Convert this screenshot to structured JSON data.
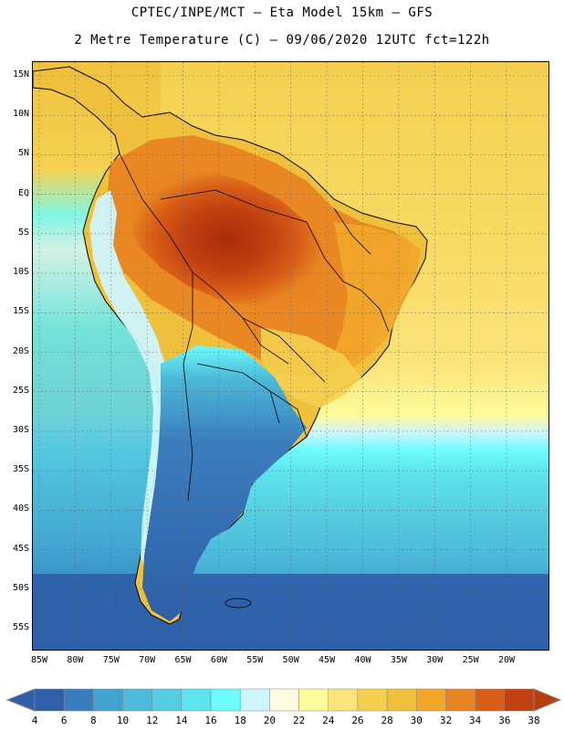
{
  "header": {
    "line1": "CPTEC/INPE/MCT –  Eta Model 15km – GFS",
    "line2": "2 Metre Temperature (C) – 09/06/2020 12UTC fct=122h"
  },
  "map": {
    "variable": "2 Metre Temperature",
    "unit": "C",
    "lat_labels": [
      {
        "text": "15N",
        "lat": 15
      },
      {
        "text": "10N",
        "lat": 10
      },
      {
        "text": "5N",
        "lat": 5
      },
      {
        "text": "EQ",
        "lat": 0
      },
      {
        "text": "5S",
        "lat": -5
      },
      {
        "text": "10S",
        "lat": -10
      },
      {
        "text": "15S",
        "lat": -15
      },
      {
        "text": "20S",
        "lat": -20
      },
      {
        "text": "25S",
        "lat": -25
      },
      {
        "text": "30S",
        "lat": -30
      },
      {
        "text": "35S",
        "lat": -35
      },
      {
        "text": "40S",
        "lat": -40
      },
      {
        "text": "45S",
        "lat": -45
      },
      {
        "text": "50S",
        "lat": -50
      },
      {
        "text": "55S",
        "lat": -55
      }
    ],
    "lon_labels": [
      {
        "text": "85W",
        "lon": -85
      },
      {
        "text": "80W",
        "lon": -80
      },
      {
        "text": "75W",
        "lon": -75
      },
      {
        "text": "70W",
        "lon": -70
      },
      {
        "text": "65W",
        "lon": -65
      },
      {
        "text": "60W",
        "lon": -60
      },
      {
        "text": "55W",
        "lon": -55
      },
      {
        "text": "50W",
        "lon": -50
      },
      {
        "text": "45W",
        "lon": -45
      },
      {
        "text": "40W",
        "lon": -40
      },
      {
        "text": "35W",
        "lon": -35
      },
      {
        "text": "30W",
        "lon": -30
      },
      {
        "text": "25W",
        "lon": -25
      },
      {
        "text": "20W",
        "lon": -20
      }
    ]
  },
  "colorbar": {
    "labels": [
      "4",
      "6",
      "8",
      "10",
      "12",
      "14",
      "16",
      "18",
      "20",
      "22",
      "24",
      "26",
      "28",
      "30",
      "32",
      "34",
      "36",
      "38"
    ],
    "colors": [
      "#2e5fa8",
      "#3a7dbd",
      "#41a3d1",
      "#4cbad9",
      "#55cde0",
      "#5de4ec",
      "#6cfcfc",
      "#cdf5fb",
      "#fffbe0",
      "#fefc9a",
      "#fbe47b",
      "#f5d04f",
      "#eec03b",
      "#f2a72b",
      "#e88522",
      "#d85d16",
      "#c24110",
      "#a82c07"
    ],
    "under_color": "#2e5fa8",
    "over_color": "#b6400d"
  }
}
